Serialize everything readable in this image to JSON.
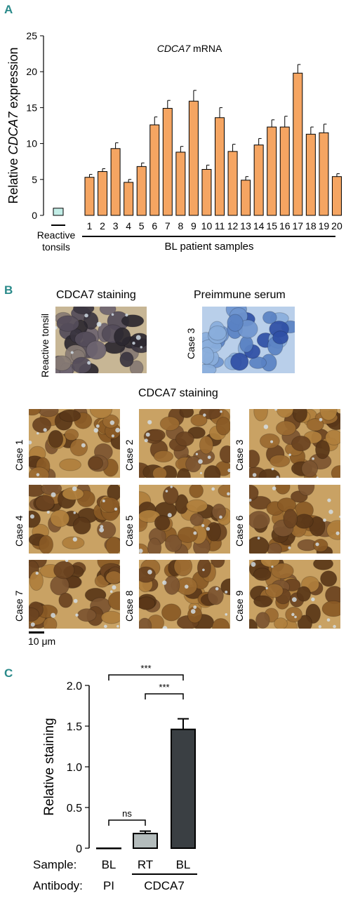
{
  "panels": {
    "a": "A",
    "b": "B",
    "c": "C"
  },
  "chart_data": [
    {
      "type": "bar",
      "title": "CDCA7 mRNA",
      "title_italic_part": "CDCA7",
      "title_rest": " mRNA",
      "ylabel_pre": "Relative ",
      "ylabel_italic": "CDCA7",
      "ylabel_post": " expression",
      "ylim": [
        0,
        25
      ],
      "yticks": [
        "0",
        "5",
        "10",
        "15",
        "20",
        "25"
      ],
      "control": {
        "label_line1": "Reactive",
        "label_line2": "tonsils",
        "value": 1.0,
        "error": 0,
        "color": "#c2ede6"
      },
      "group_label": "BL patient samples",
      "categories": [
        "1",
        "2",
        "3",
        "4",
        "5",
        "6",
        "7",
        "8",
        "9",
        "10",
        "11",
        "12",
        "13",
        "14",
        "15",
        "16",
        "17",
        "18",
        "19",
        "20"
      ],
      "values": [
        5.3,
        6.1,
        9.3,
        4.6,
        6.8,
        12.6,
        14.9,
        8.8,
        15.9,
        6.4,
        13.6,
        8.9,
        4.9,
        9.8,
        12.3,
        12.3,
        19.8,
        11.3,
        11.5,
        5.4
      ],
      "errors": [
        0.4,
        0.4,
        0.8,
        0.4,
        0.5,
        1.1,
        1.1,
        0.8,
        1.5,
        0.6,
        1.4,
        1.0,
        0.5,
        0.9,
        1.0,
        1.5,
        1.2,
        1.0,
        1.2,
        0.4
      ],
      "bar_color": "#f5a562"
    },
    {
      "type": "bar",
      "ylabel": "Relative staining",
      "ylim": [
        0,
        2.0
      ],
      "yticks": [
        "0",
        "0.5",
        "1.0",
        "1.5",
        "2.0"
      ],
      "row_labels": {
        "sample": "Sample:",
        "antibody": "Antibody:"
      },
      "samples": [
        "BL",
        "RT",
        "BL"
      ],
      "antibodies": {
        "first": "PI",
        "group": "CDCA7"
      },
      "values": [
        0.0,
        0.18,
        1.46
      ],
      "errors": [
        0.0,
        0.03,
        0.13
      ],
      "colors": [
        "#ffffff",
        "#b4bcbc",
        "#3a3f43"
      ],
      "significance": [
        {
          "from": 0,
          "to": 2,
          "label": "***"
        },
        {
          "from": 1,
          "to": 2,
          "label": "***"
        },
        {
          "from": 0,
          "to": 1,
          "label": "ns"
        }
      ]
    }
  ],
  "ihc": {
    "top_titles": {
      "left": "CDCA7 staining",
      "right": "Preimmune serum"
    },
    "top_labels": {
      "left": "Reactive tonsil",
      "right": "Case 3"
    },
    "grid_title": "CDCA7 staining",
    "cases": [
      "Case 1",
      "Case 2",
      "Case 3",
      "Case 4",
      "Case 5",
      "Case 6",
      "Case 7",
      "Case 8",
      "Case 9"
    ],
    "scale_bar": "10 μm"
  }
}
